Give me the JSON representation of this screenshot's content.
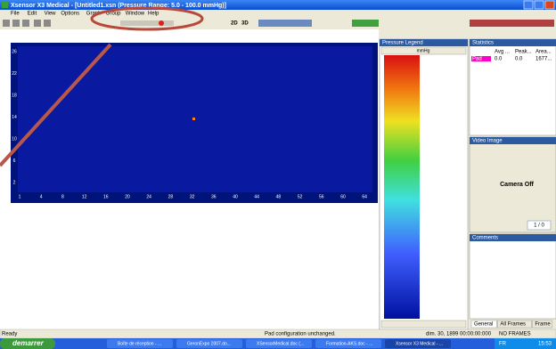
{
  "window": {
    "title": "Xsensor X3 Medical - [Untitled1.xsn (Pressure Range: 5.0 - 100.0 mmHg)]",
    "menu": [
      "File",
      "Edit",
      "View",
      "Options",
      "Graph",
      "Group",
      "Window",
      "Help"
    ]
  },
  "toolbar": {
    "view_modes": [
      "2D",
      "3D"
    ]
  },
  "sensor_map": {
    "y_ticks": [
      "26",
      "22",
      "18",
      "14",
      "10",
      "6",
      "2"
    ],
    "x_ticks": [
      "1",
      "4",
      "8",
      "12",
      "16",
      "20",
      "24",
      "28",
      "32",
      "36",
      "40",
      "44",
      "48",
      "52",
      "56",
      "60",
      "64"
    ]
  },
  "pressure_legend": {
    "title": "Pressure Legend",
    "unit": "mmHg"
  },
  "statistics": {
    "title": "Statistics",
    "columns": [
      "Avg ...",
      "Peak...",
      "Area..."
    ],
    "rows": [
      [
        "Pad",
        "0.0",
        "0.0",
        "1677..."
      ]
    ]
  },
  "video_image": {
    "title": "Video Image",
    "status": "Camera Off",
    "counter": "1 / 0"
  },
  "comments": {
    "title": "Comments"
  },
  "tabs": [
    "General",
    "All Frames",
    "Frame"
  ],
  "status_bar": {
    "left": "Ready",
    "message": "Pad configuration unchanged.",
    "date": "dim. 30, 1899 00:00:00:000",
    "frames": "NO FRAMES"
  },
  "taskbar": {
    "start": "demarrer",
    "tasks": [
      "Boîte de réception - ...",
      "GeronExpo 2007.do...",
      "XSensorMedical.doc (...",
      "Formation-AKS.doc - ...",
      "Xsensor X3 Medical - ..."
    ],
    "language": "FR",
    "clock": "15:53"
  }
}
